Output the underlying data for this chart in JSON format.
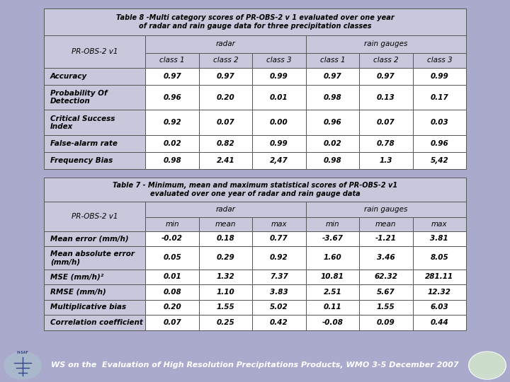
{
  "bg_color": "#aaaacc",
  "table_bg": "#c8c8dd",
  "cell_bg": "#ffffff",
  "border_color": "#555555",
  "footer_bg": "#3344aa",
  "footer_text": "WS on the  Evaluation of High Resolution Precipitations Products, WMO 3-5 December 2007",
  "footer_text_color": "#ffffff",
  "table1_title": "Table 8 -Multi category scores of PR-OBS-2 v 1 evaluated over one year\nof radar and rain gauge data for three precipitation classes",
  "table1_header_row2": [
    "PR-OBS-2 v1",
    "class 1",
    "class 2",
    "class 3",
    "class 1",
    "class 2",
    "class 3"
  ],
  "table1_rows": [
    [
      "Accuracy",
      "0.97",
      "0.97",
      "0.99",
      "0.97",
      "0.97",
      "0.99"
    ],
    [
      "Probability Of\nDetection",
      "0.96",
      "0.20",
      "0.01",
      "0.98",
      "0.13",
      "0.17"
    ],
    [
      "Critical Success\nIndex",
      "0.92",
      "0.07",
      "0.00",
      "0.96",
      "0.07",
      "0.03"
    ],
    [
      "False-alarm rate",
      "0.02",
      "0.82",
      "0.99",
      "0.02",
      "0.78",
      "0.96"
    ],
    [
      "Frequency Bias",
      "0.98",
      "2.41",
      "2,47",
      "0.98",
      "1.3",
      "5,42"
    ]
  ],
  "table2_title": "Table 7 - Minimum, mean and maximum statistical scores of PR-OBS-2 v1\nevaluated over one year of radar and rain gauge data",
  "table2_header_row2": [
    "PR-OBS-2 v1",
    "min",
    "mean",
    "max",
    "min",
    "mean",
    "max"
  ],
  "table2_rows": [
    [
      "Mean error (mm/h)",
      "-0.02",
      "0.18",
      "0.77",
      "-3.67",
      "-1.21",
      "3.81"
    ],
    [
      "Mean absolute error\n(mm/h)",
      "0.05",
      "0.29",
      "0.92",
      "1.60",
      "3.46",
      "8.05"
    ],
    [
      "MSE (mm/h)²",
      "0.01",
      "1.32",
      "7.37",
      "10.81",
      "62.32",
      "281.11"
    ],
    [
      "RMSE (mm/h)",
      "0.08",
      "1.10",
      "3.83",
      "2.51",
      "5.67",
      "12.32"
    ],
    [
      "Multiplicative bias",
      "0.20",
      "1.55",
      "5.02",
      "0.11",
      "1.55",
      "6.03"
    ],
    [
      "Correlation coefficient",
      "0.07",
      "0.25",
      "0.42",
      "-0.08",
      "0.09",
      "0.44"
    ]
  ],
  "col_widths": [
    1.9,
    1.0,
    1.0,
    1.0,
    1.0,
    1.0,
    1.0
  ],
  "fontsize_title": 7.0,
  "fontsize_header": 7.5,
  "fontsize_data": 7.5
}
